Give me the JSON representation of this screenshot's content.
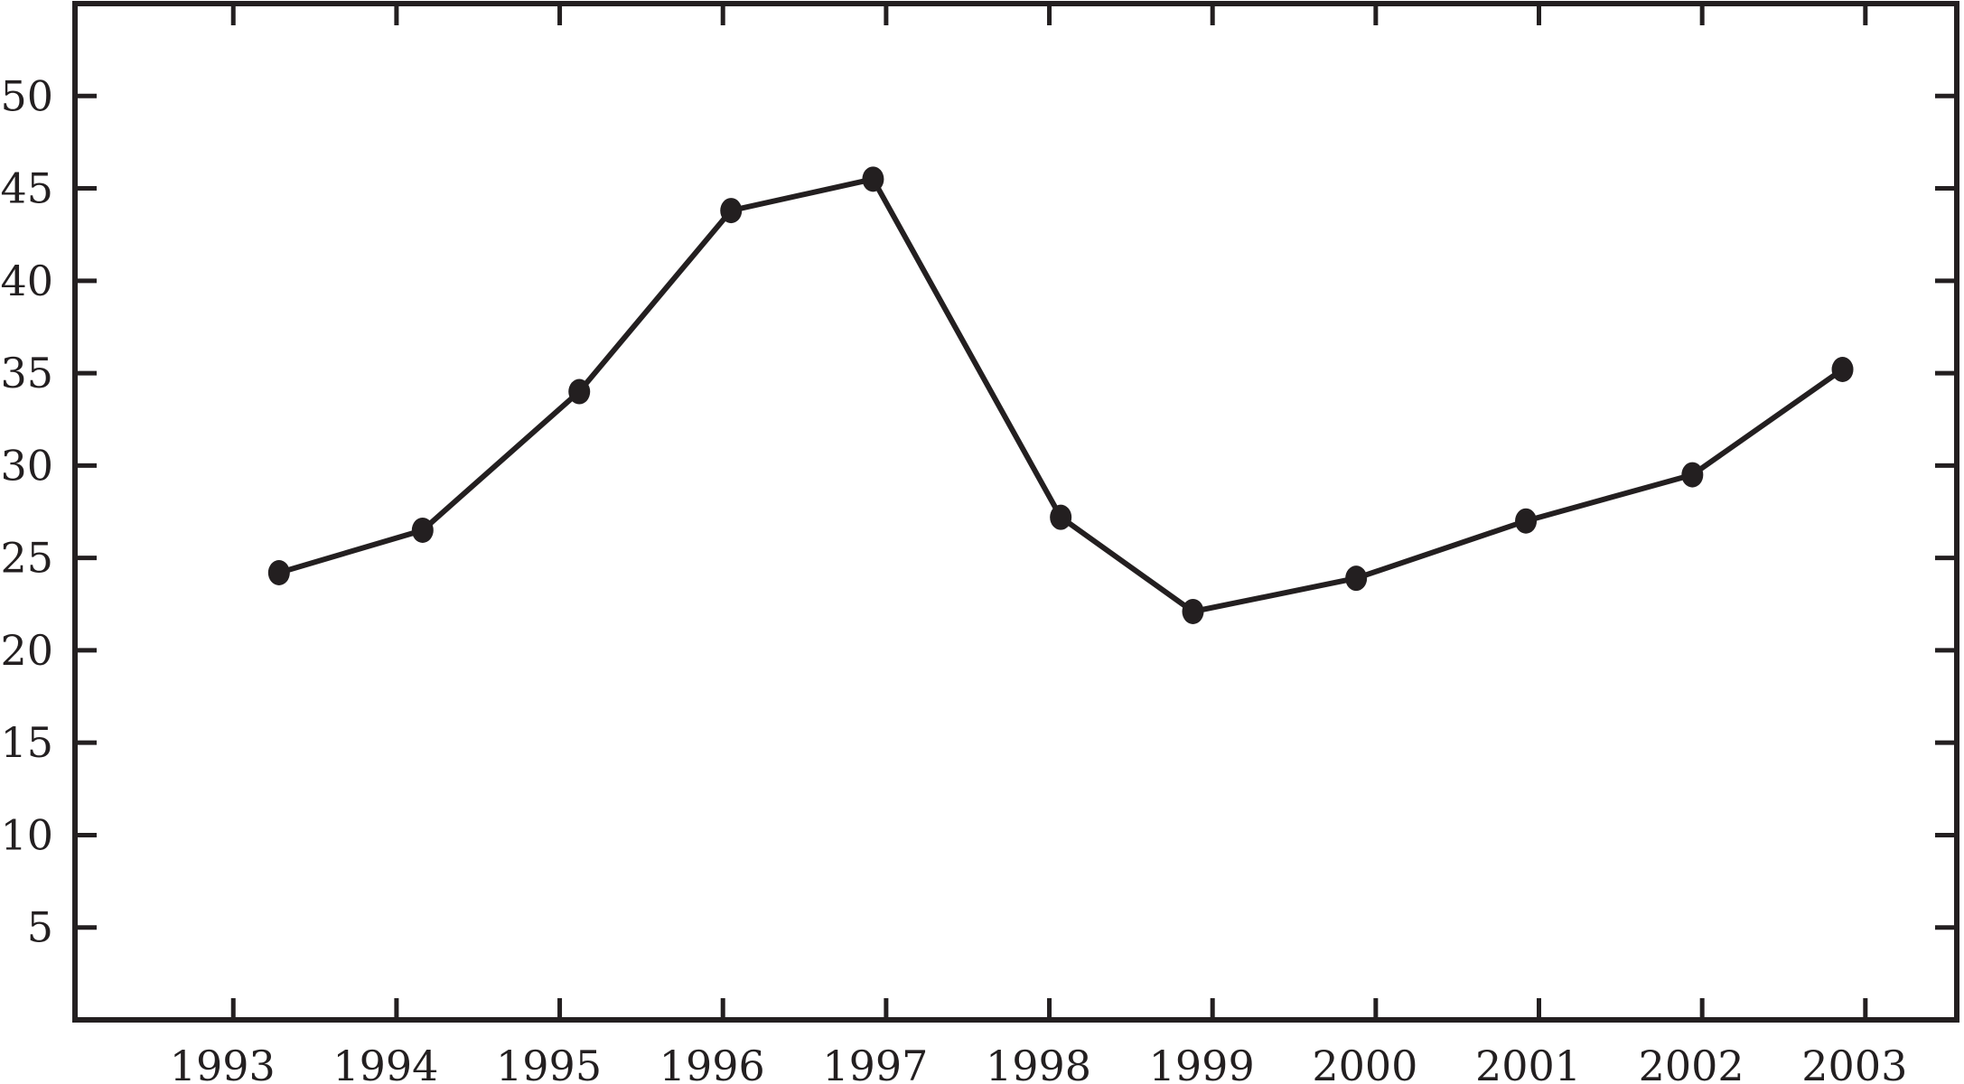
{
  "chart_data": {
    "type": "line",
    "title": "",
    "xlabel": "",
    "ylabel": "",
    "x": [
      1993.28,
      1994.16,
      1995.12,
      1996.05,
      1996.92,
      1998.07,
      1998.88,
      1999.88,
      2000.92,
      2001.94,
      2002.86
    ],
    "values": [
      24.2,
      26.5,
      34.0,
      43.8,
      45.5,
      27.2,
      22.1,
      23.9,
      27.0,
      29.5,
      35.2
    ],
    "x_ticks": [
      1993,
      1994,
      1995,
      1996,
      1997,
      1998,
      1999,
      2000,
      2001,
      2002,
      2003
    ],
    "y_ticks": [
      5,
      10,
      15,
      20,
      25,
      30,
      35,
      40,
      45,
      50
    ],
    "x_tick_labels": [
      "1993",
      "1994",
      "1995",
      "1996",
      "1997",
      "1998",
      "1999",
      "2000",
      "2001",
      "2002",
      "2003"
    ],
    "y_tick_labels": [
      "5",
      "10",
      "15",
      "20",
      "25",
      "30",
      "35",
      "40",
      "45",
      "50"
    ],
    "xlim": [
      1992.03,
      2003.56
    ],
    "ylim": [
      0,
      55
    ],
    "grid": false,
    "legend": "none",
    "line_color": "#231f20",
    "marker": "filled-circle"
  }
}
